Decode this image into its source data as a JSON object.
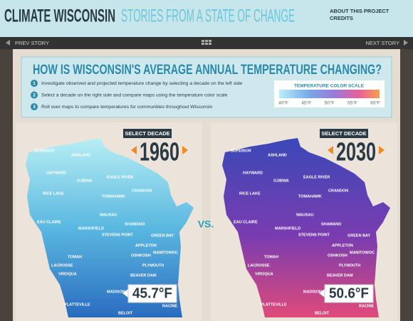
{
  "header": {
    "title": "CLIMATE WISCONSIN",
    "subtitle": "STORIES FROM A STATE OF CHANGE",
    "links": [
      "ABOUT THIS PROJECT",
      "CREDITS"
    ]
  },
  "nav": {
    "prev": "PREV STORY",
    "next": "NEXT STORY"
  },
  "intro": {
    "question": "HOW IS WISCONSIN'S AVERAGE ANNUAL TEMPERATURE CHANGING?",
    "steps": [
      {
        "number": "1",
        "text": "Investigate observed and projected temperature change by selecting a decade on the left side"
      },
      {
        "number": "2",
        "text": "Select a decade on the right side and compare maps using the temperature color scale"
      },
      {
        "number": "3",
        "text": "Roll over maps to compare temperatures for communities throughout  Wisconsin"
      }
    ],
    "scale": {
      "title": "TEMPERATURE COLOR SCALE",
      "labels": [
        "40°F",
        "45°F",
        "50°F",
        "55°F",
        "60°F"
      ]
    }
  },
  "maps": [
    {
      "select_label": "SELECT DECADE",
      "decade": "1960",
      "city": "MADISON",
      "temperature": "45.7°F"
    },
    {
      "select_label": "SELECT DECADE",
      "decade": "2030",
      "city": "MADISON",
      "temperature": "50.6°F"
    }
  ],
  "vs": "VS.",
  "cities": [
    "SUPERIOR",
    "ASHLAND",
    "HAYWARD",
    "OJIBWA",
    "EAGLE RIVER",
    "RICE LAKE",
    "TOMAHAWK",
    "CRANDON",
    "WAUSAU",
    "SHAWANO",
    "EAU CLAIRE",
    "MARSHFIELD",
    "STEVENS POINT",
    "GREEN BAY",
    "APPLETON",
    "MANITOWOC",
    "OSHKOSH",
    "TOMAH",
    "LACROSSE",
    "PLYMOUTH",
    "VIROQUA",
    "BEAVER DAM",
    "PLATTEVILLE",
    "RACINE",
    "BELOIT"
  ]
}
